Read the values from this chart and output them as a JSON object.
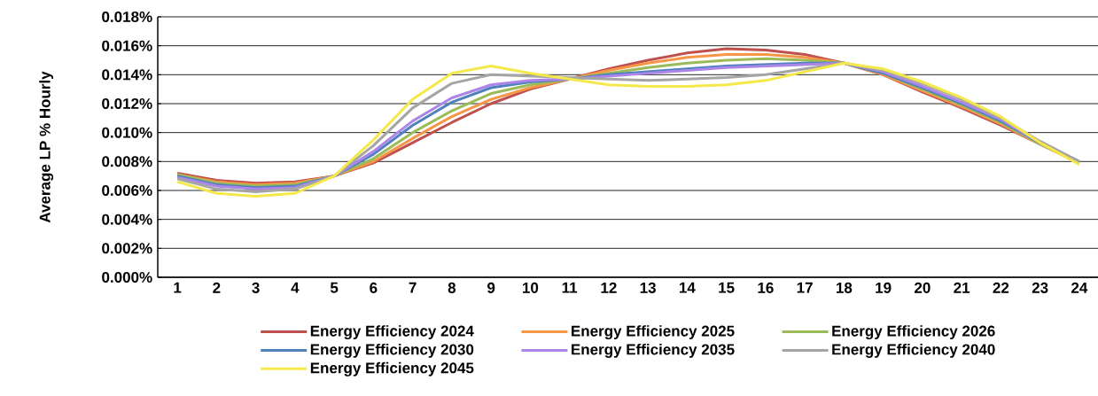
{
  "chart_data": {
    "type": "line",
    "ylabel": "Average LP % Hourly",
    "categories": [
      "1",
      "2",
      "3",
      "4",
      "5",
      "6",
      "7",
      "8",
      "9",
      "10",
      "11",
      "12",
      "13",
      "14",
      "15",
      "16",
      "17",
      "18",
      "19",
      "20",
      "21",
      "22",
      "23",
      "24"
    ],
    "ylim": [
      0,
      0.018
    ],
    "yticks": [
      {
        "value": 0,
        "label": "0.000%"
      },
      {
        "value": 0.002,
        "label": "0.002%"
      },
      {
        "value": 0.004,
        "label": "0.004%"
      },
      {
        "value": 0.006,
        "label": "0.006%"
      },
      {
        "value": 0.008,
        "label": "0.008%"
      },
      {
        "value": 0.01,
        "label": "0.010%"
      },
      {
        "value": 0.012,
        "label": "0.012%"
      },
      {
        "value": 0.014,
        "label": "0.014%"
      },
      {
        "value": 0.016,
        "label": "0.016%"
      },
      {
        "value": 0.018,
        "label": "0.018%"
      }
    ],
    "grid": "y",
    "legend": "bottom",
    "marker": "none",
    "line_style": "solid",
    "series": [
      {
        "name": "Energy Efficiency 2024",
        "color": "#c0504d",
        "values": [
          0.0072,
          0.0067,
          0.0065,
          0.0066,
          0.007,
          0.0079,
          0.0093,
          0.0107,
          0.012,
          0.013,
          0.0137,
          0.0144,
          0.015,
          0.0155,
          0.0158,
          0.0157,
          0.0154,
          0.0148,
          0.014,
          0.0128,
          0.0117,
          0.0105,
          0.0092,
          0.0079
        ]
      },
      {
        "name": "Energy Efficiency 2025",
        "color": "#f79646",
        "values": [
          0.0071,
          0.0066,
          0.0064,
          0.0065,
          0.007,
          0.008,
          0.0096,
          0.0111,
          0.0123,
          0.0131,
          0.0137,
          0.0143,
          0.0148,
          0.0152,
          0.0154,
          0.0154,
          0.0152,
          0.0148,
          0.014,
          0.0129,
          0.0118,
          0.0106,
          0.0092,
          0.0079
        ]
      },
      {
        "name": "Energy Efficiency 2026",
        "color": "#9bbb59",
        "values": [
          0.0071,
          0.0065,
          0.0063,
          0.0064,
          0.007,
          0.0082,
          0.01,
          0.0115,
          0.0127,
          0.0133,
          0.0137,
          0.0141,
          0.0145,
          0.0148,
          0.015,
          0.0151,
          0.015,
          0.0148,
          0.0141,
          0.013,
          0.0119,
          0.0107,
          0.0092,
          0.0079
        ]
      },
      {
        "name": "Energy Efficiency 2030",
        "color": "#4f81bd",
        "values": [
          0.007,
          0.0064,
          0.0062,
          0.0063,
          0.007,
          0.0085,
          0.0105,
          0.0121,
          0.0131,
          0.0135,
          0.0137,
          0.014,
          0.0142,
          0.0144,
          0.0146,
          0.0147,
          0.0148,
          0.0148,
          0.0141,
          0.0131,
          0.012,
          0.0108,
          0.0093,
          0.008
        ]
      },
      {
        "name": "Energy Efficiency 2035",
        "color": "#ab86e8",
        "values": [
          0.0069,
          0.0063,
          0.0061,
          0.0062,
          0.007,
          0.0087,
          0.0108,
          0.0124,
          0.0133,
          0.0136,
          0.0137,
          0.0139,
          0.0141,
          0.0143,
          0.0145,
          0.0146,
          0.0147,
          0.0148,
          0.0142,
          0.0132,
          0.0121,
          0.0109,
          0.0093,
          0.008
        ]
      },
      {
        "name": "Energy Efficiency 2040",
        "color": "#a5a5a5",
        "values": [
          0.0068,
          0.0061,
          0.0059,
          0.0061,
          0.007,
          0.0091,
          0.0117,
          0.0134,
          0.014,
          0.0139,
          0.0138,
          0.0137,
          0.0136,
          0.0137,
          0.0138,
          0.014,
          0.0144,
          0.0148,
          0.0143,
          0.0134,
          0.0123,
          0.011,
          0.0094,
          0.008
        ]
      },
      {
        "name": "Energy Efficiency 2045",
        "color": "#f5e84a",
        "values": [
          0.0066,
          0.0058,
          0.0056,
          0.0058,
          0.007,
          0.0095,
          0.0123,
          0.0141,
          0.0146,
          0.0141,
          0.0137,
          0.0133,
          0.0132,
          0.0132,
          0.0133,
          0.0136,
          0.0142,
          0.0148,
          0.0144,
          0.0135,
          0.0124,
          0.0111,
          0.0093,
          0.0078
        ]
      }
    ]
  }
}
